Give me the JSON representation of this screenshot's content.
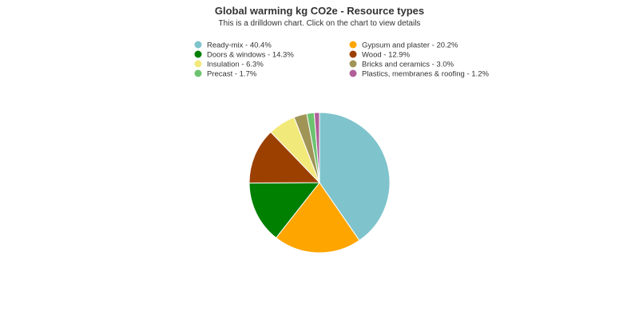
{
  "chart_data": {
    "type": "pie",
    "title": "Global warming kg CO2e - Resource types",
    "subtitle": "This is a drilldown chart. Click on the chart to view details",
    "legend_position": "top",
    "slices": [
      {
        "label": "Ready-mix",
        "legend": "Ready-mix - 40.4%",
        "value": 40.4,
        "color": "#7fc4cd"
      },
      {
        "label": "Gypsum and plaster",
        "legend": "Gypsum and plaster - 20.2%",
        "value": 20.2,
        "color": "#ffa500"
      },
      {
        "label": "Doors & windows",
        "legend": "Doors & windows - 14.3%",
        "value": 14.3,
        "color": "#008000"
      },
      {
        "label": "Wood",
        "legend": "Wood - 12.9%",
        "value": 12.9,
        "color": "#9c4000"
      },
      {
        "label": "Insulation",
        "legend": "Insulation - 6.3%",
        "value": 6.3,
        "color": "#f2e97b"
      },
      {
        "label": "Bricks and ceramics",
        "legend": "Bricks and ceramics - 3.0%",
        "value": 3.0,
        "color": "#a09557"
      },
      {
        "label": "Precast",
        "legend": "Precast - 1.7%",
        "value": 1.7,
        "color": "#6cc36f"
      },
      {
        "label": "Plastics, membranes & roofing",
        "legend": "Plastics, membranes & roofing - 1.2%",
        "value": 1.2,
        "color": "#b05f9a"
      }
    ]
  }
}
